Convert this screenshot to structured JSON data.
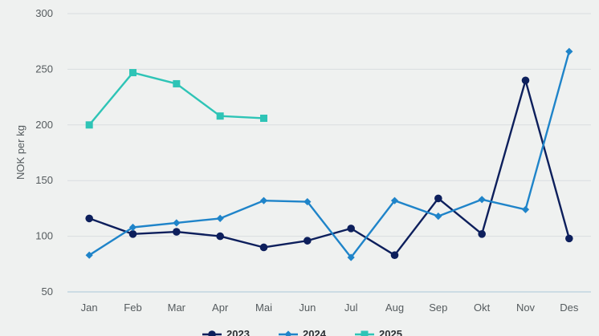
{
  "chart_data": {
    "type": "line",
    "ylabel": "NOK per kg",
    "ylim": [
      50,
      300
    ],
    "yticks": [
      "50",
      "100",
      "150",
      "200",
      "250",
      "300"
    ],
    "categories": [
      "Jan",
      "Feb",
      "Mar",
      "Apr",
      "Mai",
      "Jun",
      "Jul",
      "Aug",
      "Sep",
      "Okt",
      "Nov",
      "Des"
    ],
    "grid": "horizontal",
    "legend": "bottom",
    "series": [
      {
        "name": "2023",
        "color": "#0d1f5c",
        "marker": "circle",
        "values": [
          116,
          102,
          104,
          100,
          90,
          96,
          107,
          83,
          134,
          102,
          240,
          98
        ]
      },
      {
        "name": "2024",
        "color": "#1f84c9",
        "marker": "diamond",
        "values": [
          83,
          108,
          112,
          116,
          132,
          131,
          81,
          132,
          118,
          133,
          124,
          266
        ]
      },
      {
        "name": "2025",
        "color": "#2ec4b6",
        "marker": "square",
        "values": [
          200,
          247,
          237,
          208,
          206,
          null,
          null,
          null,
          null,
          null,
          null,
          null
        ]
      }
    ]
  }
}
